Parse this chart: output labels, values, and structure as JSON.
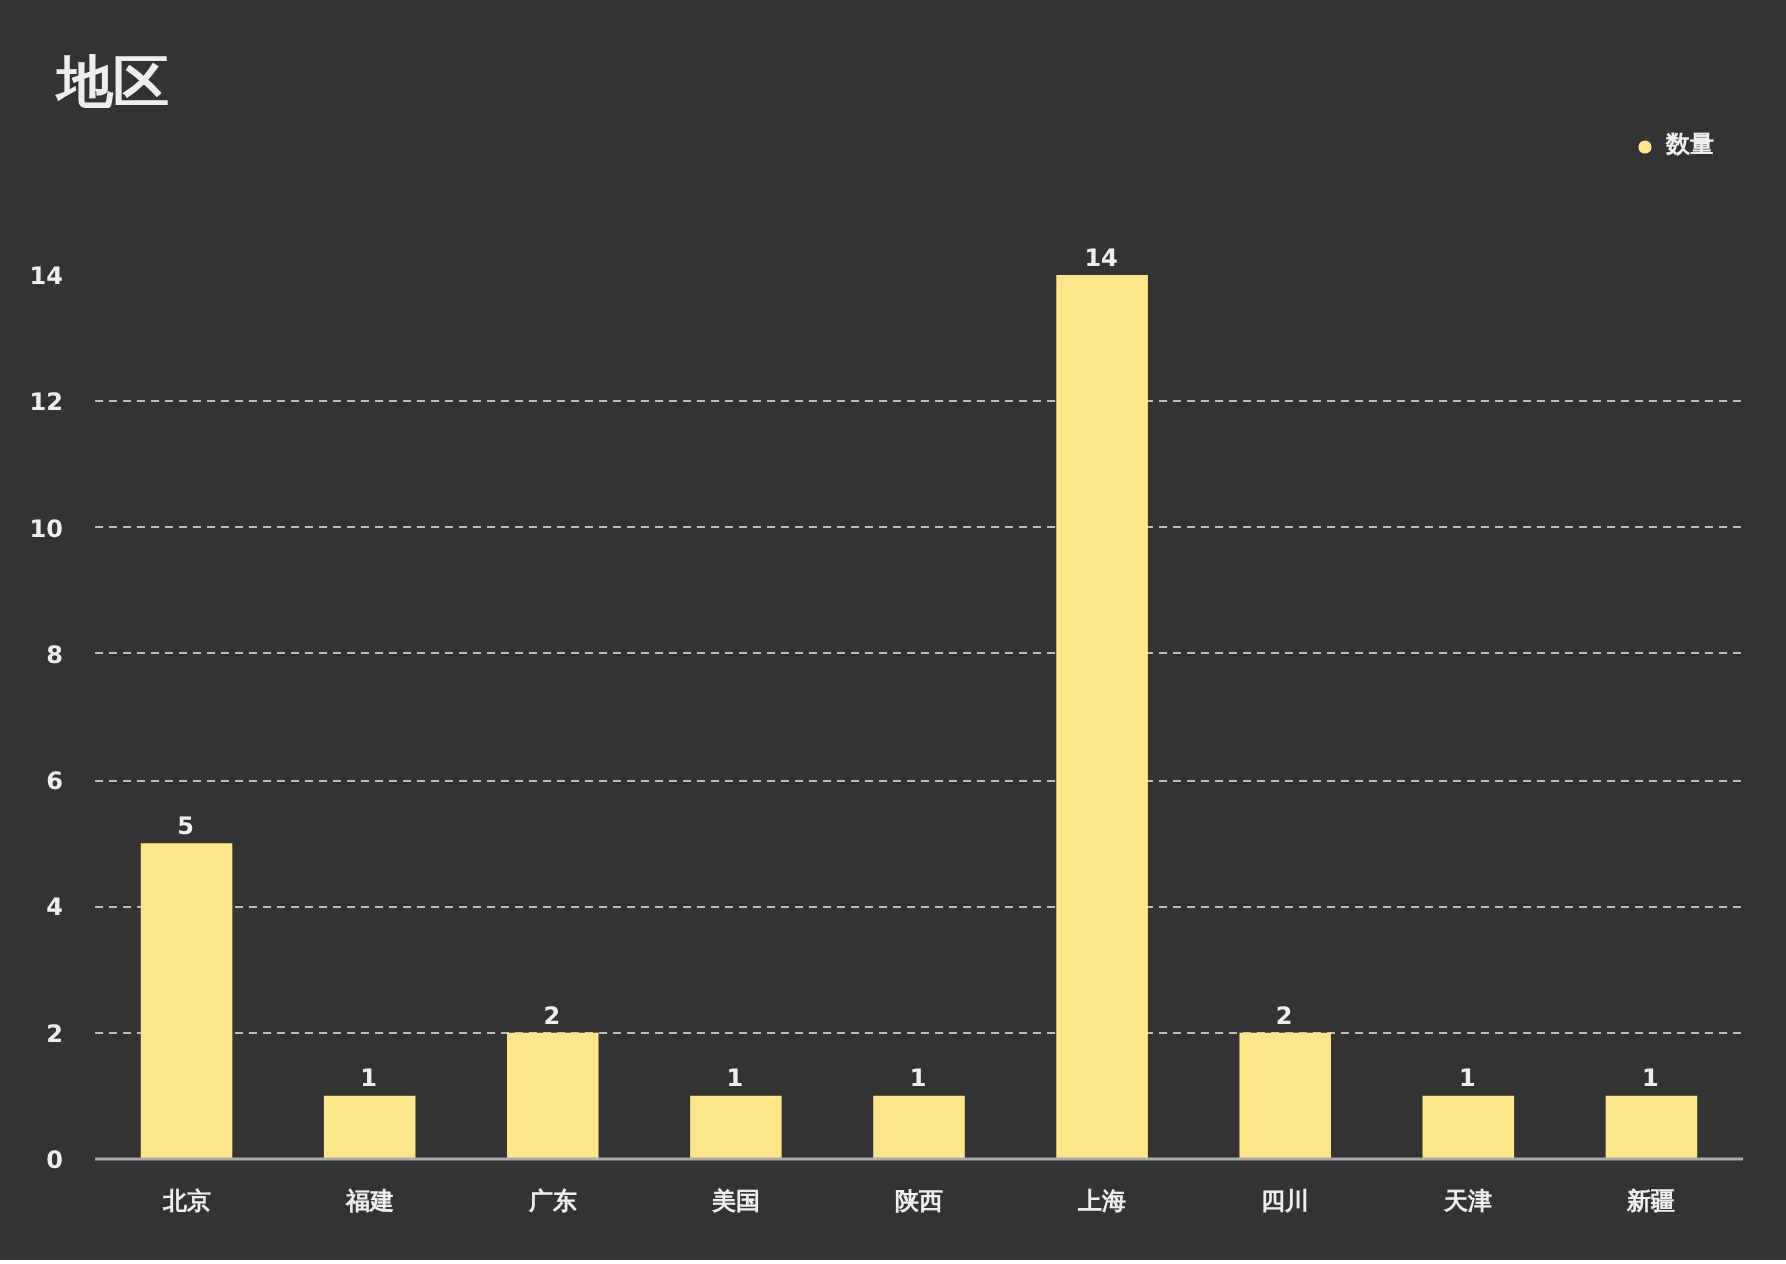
{
  "chart_data": {
    "type": "bar",
    "title": "地区",
    "categories": [
      "北京",
      "福建",
      "广东",
      "美国",
      "陕西",
      "上海",
      "四川",
      "天津",
      "新疆"
    ],
    "series": [
      {
        "name": "数量",
        "color": "#ffe68c",
        "values": [
          5,
          1,
          2,
          1,
          1,
          14,
          2,
          1,
          1
        ]
      }
    ],
    "ylim": [
      0,
      14
    ],
    "yticks": [
      0,
      2,
      4,
      6,
      8,
      10,
      12,
      14
    ],
    "grid": "y",
    "legend": "top right",
    "data_labels": true
  }
}
